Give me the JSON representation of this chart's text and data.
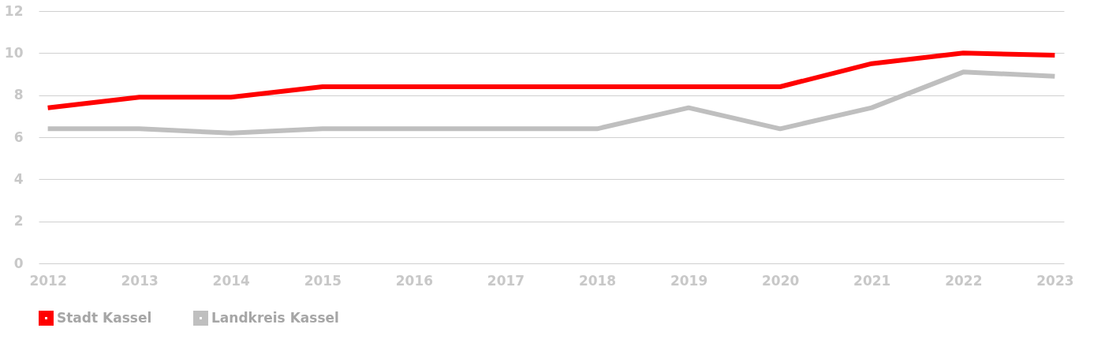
{
  "chart_data": {
    "type": "line",
    "categories": [
      "2012",
      "2013",
      "2014",
      "2015",
      "2016",
      "2017",
      "2018",
      "2019",
      "2020",
      "2021",
      "2022",
      "2023"
    ],
    "series": [
      {
        "name": "Stadt Kassel",
        "color": "#ff0000",
        "values": [
          7.4,
          7.9,
          7.9,
          8.4,
          8.4,
          8.4,
          8.4,
          8.4,
          8.4,
          9.5,
          10.0,
          9.9
        ]
      },
      {
        "name": "Landkreis Kassel",
        "color": "#bfbfbf",
        "values": [
          6.4,
          6.4,
          6.2,
          6.4,
          6.4,
          6.4,
          6.4,
          7.4,
          6.4,
          7.4,
          9.1,
          8.9
        ]
      }
    ],
    "ylim": [
      0,
      12
    ],
    "yticks": [
      0,
      2,
      4,
      6,
      8,
      10,
      12
    ],
    "grid": "y",
    "legend": "bottom",
    "marker": "none",
    "line_style": "solid"
  }
}
